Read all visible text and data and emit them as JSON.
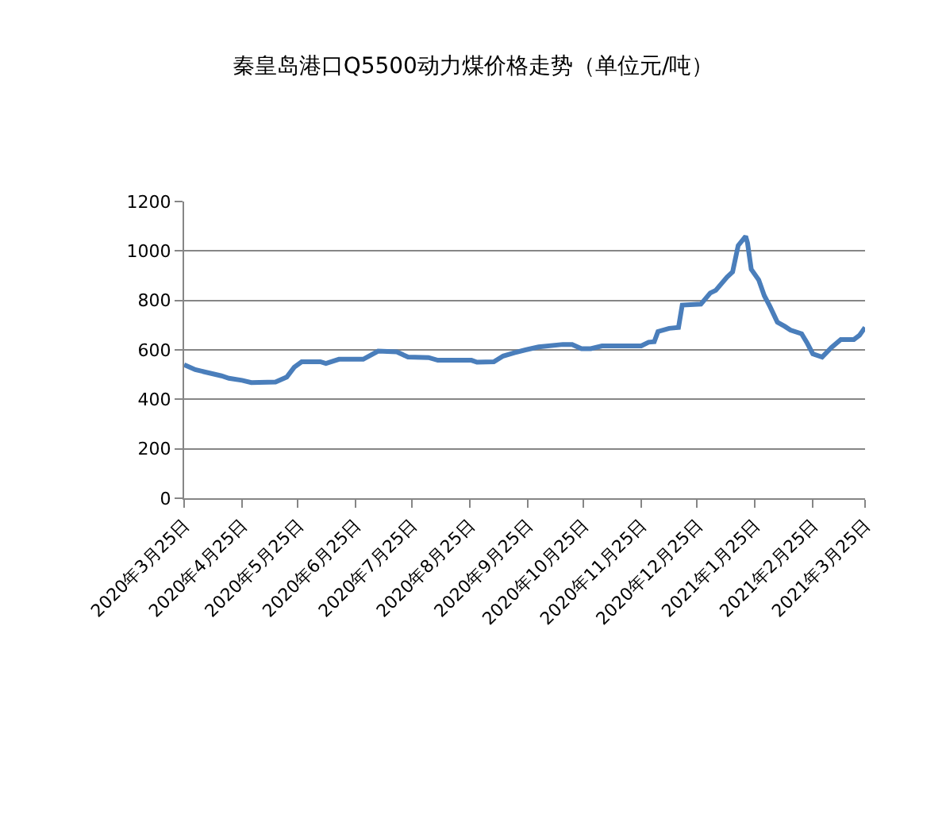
{
  "chart_data": {
    "type": "line",
    "title": "秦皇岛港口Q5500动力煤价格走势（单位元/吨）",
    "x": [
      "2020-03-25",
      "2020-03-31",
      "2020-04-14",
      "2020-04-18",
      "2020-04-25",
      "2020-04-30",
      "2020-05-13",
      "2020-05-19",
      "2020-05-23",
      "2020-05-27",
      "2020-06-06",
      "2020-06-09",
      "2020-06-16",
      "2020-06-29",
      "2020-07-07",
      "2020-07-17",
      "2020-07-23",
      "2020-08-03",
      "2020-08-08",
      "2020-08-26",
      "2020-08-29",
      "2020-09-07",
      "2020-09-12",
      "2020-09-18",
      "2020-09-24",
      "2020-10-01",
      "2020-10-14",
      "2020-10-19",
      "2020-10-24",
      "2020-10-29",
      "2020-11-04",
      "2020-11-25",
      "2020-11-29",
      "2020-12-02",
      "2020-12-04",
      "2020-12-10",
      "2020-12-15",
      "2020-12-17",
      "2020-12-27",
      "2021-01-01",
      "2021-01-04",
      "2021-01-10",
      "2021-01-13",
      "2021-01-16",
      "2021-01-20",
      "2021-01-21",
      "2021-01-23",
      "2021-01-27",
      "2021-01-30",
      "2021-02-02",
      "2021-02-06",
      "2021-02-10",
      "2021-02-13",
      "2021-02-19",
      "2021-02-22",
      "2021-02-25",
      "2021-03-02",
      "2021-03-07",
      "2021-03-12",
      "2021-03-19",
      "2021-03-22",
      "2021-03-25"
    ],
    "series": [
      {
        "color": "#4a7ebb",
        "values": [
          540,
          520,
          495,
          485,
          477,
          468,
          470,
          490,
          530,
          552,
          552,
          545,
          562,
          562,
          595,
          592,
          571,
          569,
          558,
          558,
          550,
          552,
          575,
          588,
          600,
          612,
          622,
          622,
          605,
          605,
          616,
          616,
          631,
          633,
          674,
          687,
          691,
          781,
          785,
          830,
          841,
          894,
          915,
          1022,
          1059,
          1033,
          926,
          883,
          819,
          776,
          712,
          695,
          680,
          665,
          627,
          584,
          571,
          610,
          642,
          642,
          659,
          691
        ]
      }
    ],
    "xlim": [
      "2020-03-25",
      "2021-03-25"
    ],
    "xticks": [
      {
        "value": "2020-03-25",
        "label": "2020年3月25日"
      },
      {
        "value": "2020-04-25",
        "label": "2020年4月25日"
      },
      {
        "value": "2020-05-25",
        "label": "2020年5月25日"
      },
      {
        "value": "2020-06-25",
        "label": "2020年6月25日"
      },
      {
        "value": "2020-07-25",
        "label": "2020年7月25日"
      },
      {
        "value": "2020-08-25",
        "label": "2020年8月25日"
      },
      {
        "value": "2020-09-25",
        "label": "2020年9月25日"
      },
      {
        "value": "2020-10-25",
        "label": "2020年10月25日"
      },
      {
        "value": "2020-11-25",
        "label": "2020年11月25日"
      },
      {
        "value": "2020-12-25",
        "label": "2020年12月25日"
      },
      {
        "value": "2021-01-25",
        "label": "2021年1月25日"
      },
      {
        "value": "2021-02-25",
        "label": "2021年2月25日"
      },
      {
        "value": "2021-03-25",
        "label": "2021年3月25日"
      }
    ],
    "ylim": [
      0,
      1200
    ],
    "yticks": [
      0,
      200,
      400,
      600,
      800,
      1000,
      1200
    ],
    "grid": "y",
    "legend": false,
    "marker": "none",
    "line_style": "solid"
  }
}
